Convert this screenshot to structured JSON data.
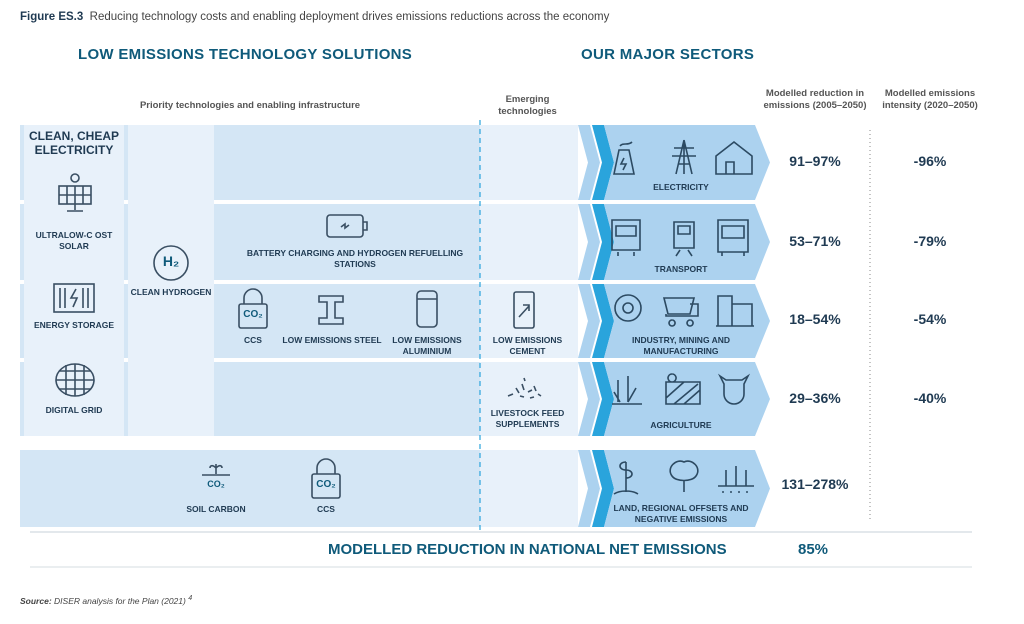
{
  "caption": {
    "label": "Figure ES.3",
    "text": "Reducing technology costs and enabling deployment drives emissions reductions across the economy"
  },
  "headers": {
    "left": "LOW EMISSIONS TECHNOLOGY SOLUTIONS",
    "right": "OUR MAJOR SECTORS"
  },
  "subheaders": {
    "priority": "Priority technologies and enabling infrastructure",
    "emerging": "Emerging technologies",
    "reduction": "Modelled reduction in emissions (2005–2050)",
    "intensity": "Modelled emissions intensity (2020–2050)"
  },
  "technologies": {
    "clean_electricity": "CLEAN, CHEAP ELECTRICITY",
    "solar": "ULTRALOW-C OST SOLAR",
    "storage": "ENERGY STORAGE",
    "grid": "DIGITAL GRID",
    "hydrogen": "CLEAN HYDROGEN",
    "h2": "H₂",
    "charging": "BATTERY CHARGING AND HYDROGEN REFUELLING STATIONS",
    "ccs": "CCS",
    "steel": "LOW EMISSIONS STEEL",
    "aluminium": "LOW EMISSIONS ALUMINIUM",
    "cement": "LOW EMISSIONS CEMENT",
    "livestock": "LIVESTOCK FEED SUPPLEMENTS",
    "soil": "SOIL CARBON",
    "ccs2": "CCS",
    "co2": "CO₂"
  },
  "sectors": [
    {
      "name": "ELECTRICITY",
      "reduction": "91–97%",
      "intensity": "-96%"
    },
    {
      "name": "TRANSPORT",
      "reduction": "53–71%",
      "intensity": "-79%"
    },
    {
      "name": "INDUSTRY, MINING AND MANUFACTURING",
      "reduction": "18–54%",
      "intensity": "-54%"
    },
    {
      "name": "AGRICULTURE",
      "reduction": "29–36%",
      "intensity": "-40%"
    },
    {
      "name": "LAND, REGIONAL OFFSETS AND NEGATIVE EMISSIONS",
      "reduction": "131–278%",
      "intensity": ""
    }
  ],
  "net": {
    "label": "MODELLED REDUCTION IN NATIONAL NET EMISSIONS",
    "value": "85%"
  },
  "source": {
    "label": "Source:",
    "text": "DISER analysis for the Plan (2021)",
    "note": "4"
  },
  "colors": {
    "band": "#d4e6f5",
    "light": "#e8f1fa",
    "chevron": "#acd2ef",
    "stripe": "#2aa4dc",
    "heading": "#0f5a7a",
    "text": "#1f3a52"
  }
}
